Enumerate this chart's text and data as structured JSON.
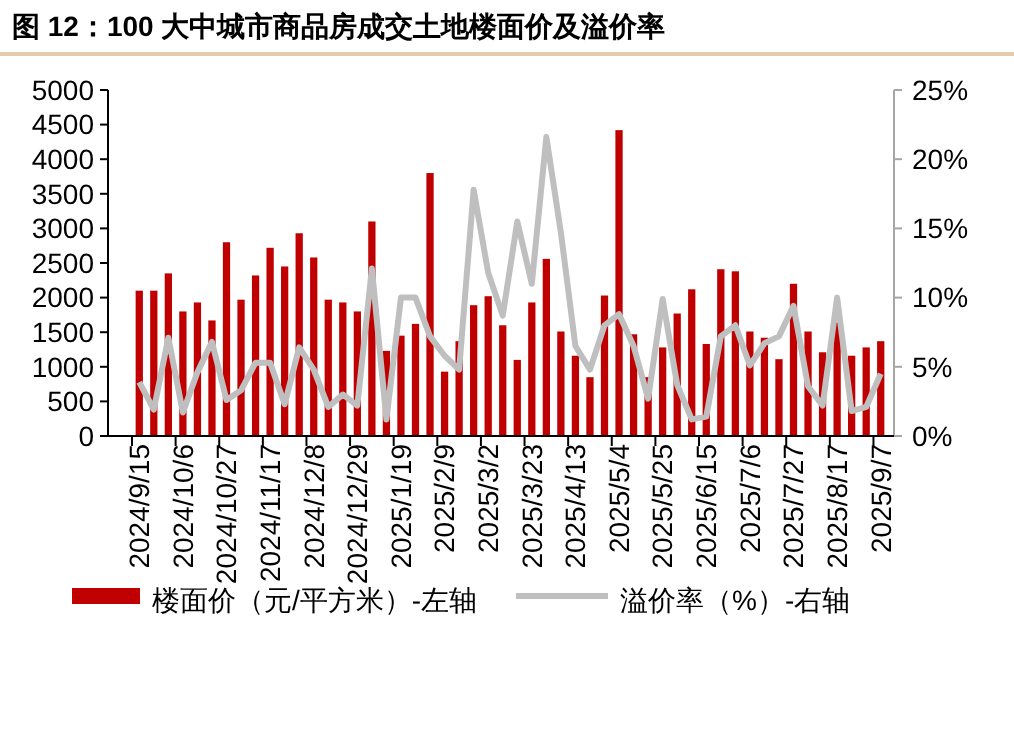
{
  "chart_data": {
    "type": "bar",
    "title": "图 12：100 大中城市商品房成交土地楼面价及溢价率",
    "categories": [
      "2024/9/15",
      null,
      null,
      "2024/10/6",
      null,
      null,
      "2024/10/27",
      null,
      null,
      "2024/11/17",
      null,
      null,
      "2024/12/8",
      null,
      null,
      "2024/12/29",
      null,
      null,
      "2025/1/19",
      null,
      null,
      "2025/2/9",
      null,
      null,
      "2025/3/2",
      null,
      null,
      "2025/3/23",
      null,
      null,
      "2025/4/13",
      null,
      null,
      "2025/5/4",
      null,
      null,
      "2025/5/25",
      null,
      null,
      "2025/6/15",
      null,
      null,
      "2025/7/6",
      null,
      null,
      "2025/7/27",
      null,
      null,
      "2025/8/17",
      null,
      null,
      "2025/9/7"
    ],
    "series": [
      {
        "name": "楼面价（元/平方米）-左轴",
        "color": "#c00000",
        "values": [
          2100,
          2100,
          2350,
          1800,
          1930,
          1670,
          2800,
          1970,
          2320,
          2720,
          2450,
          2930,
          2580,
          1970,
          1930,
          1800,
          3100,
          1230,
          1450,
          1620,
          3800,
          930,
          1370,
          1890,
          2020,
          1600,
          1100,
          1930,
          2560,
          1510,
          1160,
          850,
          2030,
          4420,
          1470,
          850,
          1280,
          1770,
          2120,
          1330,
          2410,
          2380,
          1510,
          1420,
          1110,
          2200,
          1510,
          1210,
          1640,
          1160,
          1280,
          1370
        ]
      },
      {
        "name": "溢价率（%）-右轴",
        "type": "line",
        "axis": "y2",
        "color": "#bfbfbf",
        "values": [
          3.9,
          1.9,
          7.1,
          1.7,
          4.6,
          6.8,
          2.6,
          3.3,
          5.3,
          5.3,
          2.3,
          6.4,
          4.8,
          2.1,
          3.0,
          2.2,
          12.1,
          1.2,
          10.0,
          10.0,
          7.2,
          5.8,
          4.8,
          17.8,
          11.8,
          8.7,
          15.5,
          11.0,
          21.6,
          14.7,
          6.5,
          4.8,
          8.0,
          8.8,
          6.5,
          2.7,
          9.9,
          3.7,
          1.2,
          1.4,
          7.2,
          8.0,
          5.1,
          6.7,
          7.2,
          9.4,
          3.6,
          2.2,
          10.0,
          1.8,
          2.1,
          4.5
        ]
      }
    ],
    "ylim": [
      0,
      5000
    ],
    "yticks": [
      0,
      500,
      1000,
      1500,
      2000,
      2500,
      3000,
      3500,
      4000,
      4500,
      5000
    ],
    "y2lim": [
      0,
      25
    ],
    "y2ticks": [
      {
        "value": 0,
        "label": "0%"
      },
      {
        "value": 5,
        "label": "5%"
      },
      {
        "value": 10,
        "label": "10%"
      },
      {
        "value": 15,
        "label": "15%"
      },
      {
        "value": 20,
        "label": "20%"
      },
      {
        "value": 25,
        "label": "25%"
      }
    ],
    "legend": "bottom",
    "marker": "none",
    "line_style": "solid"
  }
}
